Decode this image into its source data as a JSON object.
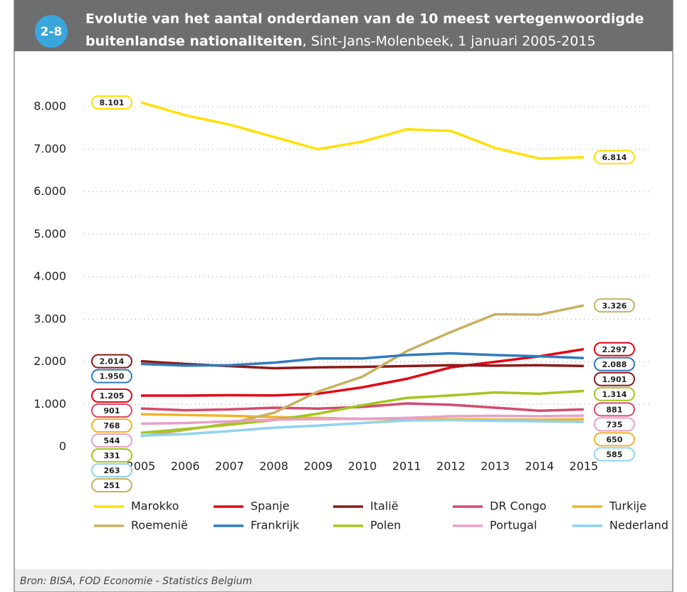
{
  "badge": "2-8",
  "chart_data": {
    "type": "line",
    "title_lines": [
      "Evolutie van het aantal onderdanen van de 10 meest vertegenwoordigde",
      "buitenlandse nationaliteiten"
    ],
    "subtitle": ", Sint-Jans-Molenbeek, 1 januari 2005-2015",
    "source": "Bron: BISA, FOD Economie - Statistics Belgium",
    "categories": [
      "2005",
      "2006",
      "2007",
      "2008",
      "2009",
      "2010",
      "2011",
      "2012",
      "2013",
      "2014",
      "2015"
    ],
    "ylim": [
      0,
      8500
    ],
    "yticks": [
      0,
      {
        "value": 1000,
        "label": "1.000"
      },
      {
        "value": 2000,
        "label": "2.000"
      },
      {
        "value": 3000,
        "label": "3.000"
      },
      {
        "value": 4000,
        "label": "4.000"
      },
      {
        "value": 5000,
        "label": "5.000"
      },
      {
        "value": 6000,
        "label": "6.000"
      },
      {
        "value": 7000,
        "label": "7.000"
      },
      {
        "value": 8000,
        "label": "8.000"
      }
    ],
    "grid": true,
    "series": [
      {
        "name": "Marokko",
        "color": "#ffe000",
        "values": [
          8101,
          7800,
          7580,
          7290,
          7000,
          7180,
          7470,
          7430,
          7030,
          6780,
          6814
        ],
        "value_labels": [
          "8.101",
          null,
          null,
          null,
          null,
          null,
          null,
          null,
          null,
          null,
          "6.814"
        ]
      },
      {
        "name": "Spanje",
        "color": "#e30613",
        "values": [
          1205,
          1205,
          1215,
          1210,
          1250,
          1400,
          1600,
          1870,
          2000,
          2130,
          2297
        ],
        "value_labels": [
          "1.205",
          null,
          null,
          null,
          null,
          null,
          null,
          null,
          null,
          null,
          "2.297"
        ]
      },
      {
        "name": "Italië",
        "color": "#8b1a1a",
        "values": [
          2014,
          1950,
          1900,
          1850,
          1870,
          1880,
          1900,
          1920,
          1910,
          1920,
          1901
        ],
        "value_labels": [
          "2.014",
          null,
          null,
          null,
          null,
          null,
          null,
          null,
          null,
          null,
          "1.901"
        ]
      },
      {
        "name": "DR Congo",
        "color": "#d44a6e",
        "values": [
          901,
          860,
          880,
          920,
          900,
          940,
          1020,
          990,
          920,
          850,
          881
        ],
        "value_labels": [
          "901",
          null,
          null,
          null,
          null,
          null,
          null,
          null,
          null,
          null,
          "881"
        ]
      },
      {
        "name": "Turkije",
        "color": "#f0b429",
        "values": [
          768,
          750,
          730,
          700,
          680,
          660,
          650,
          650,
          640,
          640,
          650
        ],
        "value_labels": [
          "768",
          null,
          null,
          null,
          null,
          null,
          null,
          null,
          null,
          null,
          "650"
        ]
      },
      {
        "name": "Roemenië",
        "color": "#c8b060",
        "values": [
          251,
          400,
          550,
          800,
          1300,
          1650,
          2250,
          2700,
          3120,
          3110,
          3326
        ],
        "value_labels": [
          "251",
          null,
          null,
          null,
          null,
          null,
          null,
          null,
          null,
          null,
          "3.326"
        ]
      },
      {
        "name": "Frankrijk",
        "color": "#2f7bbf",
        "values": [
          1950,
          1910,
          1920,
          1980,
          2080,
          2080,
          2160,
          2200,
          2160,
          2130,
          2088
        ],
        "value_labels": [
          "1.950",
          null,
          null,
          null,
          null,
          null,
          null,
          null,
          null,
          null,
          "2.088"
        ]
      },
      {
        "name": "Polen",
        "color": "#a4c520",
        "values": [
          331,
          420,
          520,
          630,
          780,
          980,
          1150,
          1210,
          1280,
          1250,
          1314
        ],
        "value_labels": [
          "331",
          null,
          null,
          null,
          null,
          null,
          null,
          null,
          null,
          null,
          "1.314"
        ]
      },
      {
        "name": "Portugal",
        "color": "#e8a0c8",
        "values": [
          544,
          560,
          600,
          640,
          650,
          660,
          680,
          720,
          730,
          720,
          735
        ],
        "value_labels": [
          "544",
          null,
          null,
          null,
          null,
          null,
          null,
          null,
          null,
          null,
          "735"
        ]
      },
      {
        "name": "Nederland",
        "color": "#8fd3f0",
        "values": [
          263,
          300,
          370,
          450,
          500,
          560,
          620,
          630,
          610,
          600,
          585
        ],
        "value_labels": [
          "263",
          null,
          null,
          null,
          null,
          null,
          null,
          null,
          null,
          null,
          "585"
        ]
      }
    ]
  }
}
